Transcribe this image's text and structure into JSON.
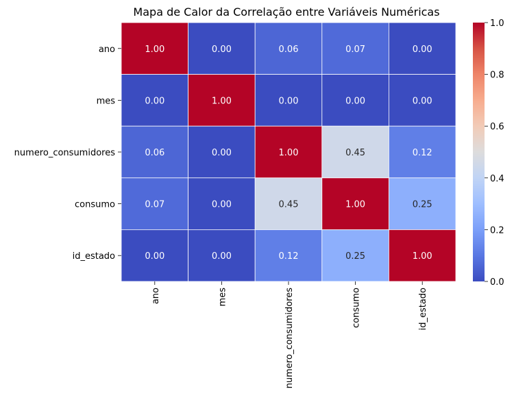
{
  "chart_data": {
    "type": "heatmap",
    "title": "Mapa de Calor da Correlação entre Variáveis Numéricas",
    "xlabel": "",
    "ylabel": "",
    "rows": [
      "ano",
      "mes",
      "numero_consumidores",
      "consumo",
      "id_estado"
    ],
    "columns": [
      "ano",
      "mes",
      "numero_consumidores",
      "consumo",
      "id_estado"
    ],
    "values": [
      [
        1.0,
        0.0,
        0.06,
        0.07,
        0.0
      ],
      [
        0.0,
        1.0,
        0.0,
        0.0,
        0.0
      ],
      [
        0.06,
        0.0,
        1.0,
        0.45,
        0.12
      ],
      [
        0.07,
        0.0,
        0.45,
        1.0,
        0.25
      ],
      [
        0.0,
        0.0,
        0.12,
        0.25,
        1.0
      ]
    ],
    "cell_labels": [
      [
        "1.00",
        "0.00",
        "0.06",
        "0.07",
        "0.00"
      ],
      [
        "0.00",
        "1.00",
        "0.00",
        "0.00",
        "0.00"
      ],
      [
        "0.06",
        "0.00",
        "1.00",
        "0.45",
        "0.12"
      ],
      [
        "0.07",
        "0.00",
        "0.45",
        "1.00",
        "0.25"
      ],
      [
        "0.00",
        "0.00",
        "0.12",
        "0.25",
        "1.00"
      ]
    ],
    "colormap": "coolwarm",
    "colormap_stops": [
      "#3b4cc0",
      "#5977e3",
      "#7b9ff9",
      "#9ebeff",
      "#c0d4f5",
      "#dddcdc",
      "#f2cbb7",
      "#f7ac8e",
      "#ee8468",
      "#d65244",
      "#b40426"
    ],
    "vmin": 0.0,
    "vmax": 1.0,
    "colorbar_ticks": [
      "0.0",
      "0.2",
      "0.4",
      "0.6",
      "0.8",
      "1.0"
    ],
    "grid_line_color": "#ffffff",
    "legend_position": "right"
  }
}
